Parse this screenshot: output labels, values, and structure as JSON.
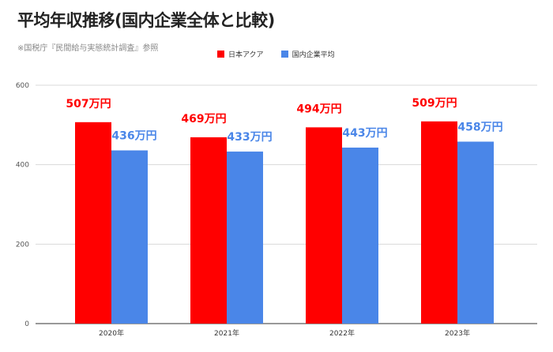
{
  "chart_data": {
    "type": "bar",
    "title": "平均年収推移(国内企業全体と比較)",
    "subtitle": "※国税庁『民間給与実態統計調査』参照",
    "categories": [
      "2020年",
      "2021年",
      "2022年",
      "2023年"
    ],
    "series": [
      {
        "name": "日本アクア",
        "color": "#ff0000",
        "label_color": "#ff0000",
        "values": [
          507,
          469,
          494,
          509
        ],
        "data_labels": [
          "507万円",
          "469万円",
          "494万円",
          "509万円"
        ]
      },
      {
        "name": "国内企業平均",
        "color": "#4a86e8",
        "label_color": "#4a86e8",
        "values": [
          436,
          433,
          443,
          458
        ],
        "data_labels": [
          "436万円",
          "433万円",
          "443万円",
          "458万円"
        ]
      }
    ],
    "y_ticks": [
      "0",
      "200",
      "400",
      "600"
    ],
    "ylim": [
      0,
      600
    ],
    "grid": true,
    "legend_position": "top"
  }
}
